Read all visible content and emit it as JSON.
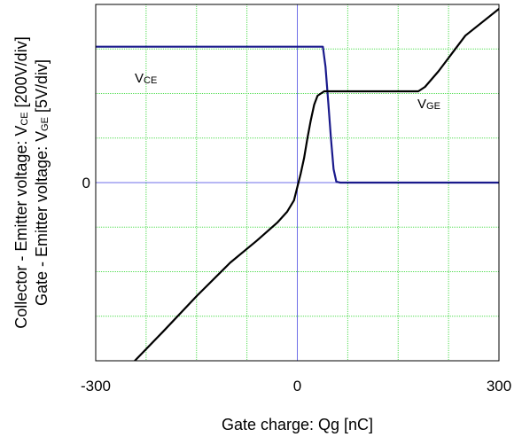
{
  "chart_data": {
    "type": "line",
    "xlabel": "Gate charge: Qg [nC]",
    "ylabel_lines": [
      {
        "pre": "Collector - Emitter voltage: V",
        "sub": "CE",
        "post": " [200V/div]"
      },
      {
        "pre": "Gate - Emitter voltage: V",
        "sub": "GE",
        "post": " [5V/div]"
      }
    ],
    "xlim": [
      -300,
      300
    ],
    "ylim_div": [
      -4,
      4
    ],
    "x_ticks": [
      {
        "value": -300,
        "label": "-300"
      },
      {
        "value": 0,
        "label": "0"
      },
      {
        "value": 300,
        "label": "300"
      }
    ],
    "y_ticks": [
      {
        "value": 0,
        "label": "0"
      }
    ],
    "grid": true,
    "grid_color": "#55dd55",
    "zero_axis_color": "#6f6fe8",
    "series": [
      {
        "name": "VCE",
        "label_main": "V",
        "label_sub": "CE",
        "color": "#1a1a8c",
        "points": [
          [
            -300,
            3.05
          ],
          [
            38,
            3.05
          ],
          [
            42,
            2.6
          ],
          [
            46,
            1.8
          ],
          [
            50,
            1.0
          ],
          [
            54,
            0.3
          ],
          [
            58,
            0.02
          ],
          [
            64,
            0.0
          ],
          [
            300,
            0.0
          ]
        ]
      },
      {
        "name": "VGE",
        "label_main": "V",
        "label_sub": "GE",
        "color": "#000000",
        "points": [
          [
            -245,
            -4.05
          ],
          [
            -200,
            -3.35
          ],
          [
            -150,
            -2.55
          ],
          [
            -100,
            -1.8
          ],
          [
            -60,
            -1.3
          ],
          [
            -30,
            -0.9
          ],
          [
            -15,
            -0.65
          ],
          [
            -5,
            -0.4
          ],
          [
            5,
            0.2
          ],
          [
            10,
            0.55
          ],
          [
            15,
            1.0
          ],
          [
            20,
            1.4
          ],
          [
            25,
            1.75
          ],
          [
            30,
            1.95
          ],
          [
            40,
            2.05
          ],
          [
            180,
            2.05
          ],
          [
            190,
            2.15
          ],
          [
            210,
            2.5
          ],
          [
            250,
            3.3
          ],
          [
            300,
            3.9
          ]
        ]
      }
    ]
  }
}
